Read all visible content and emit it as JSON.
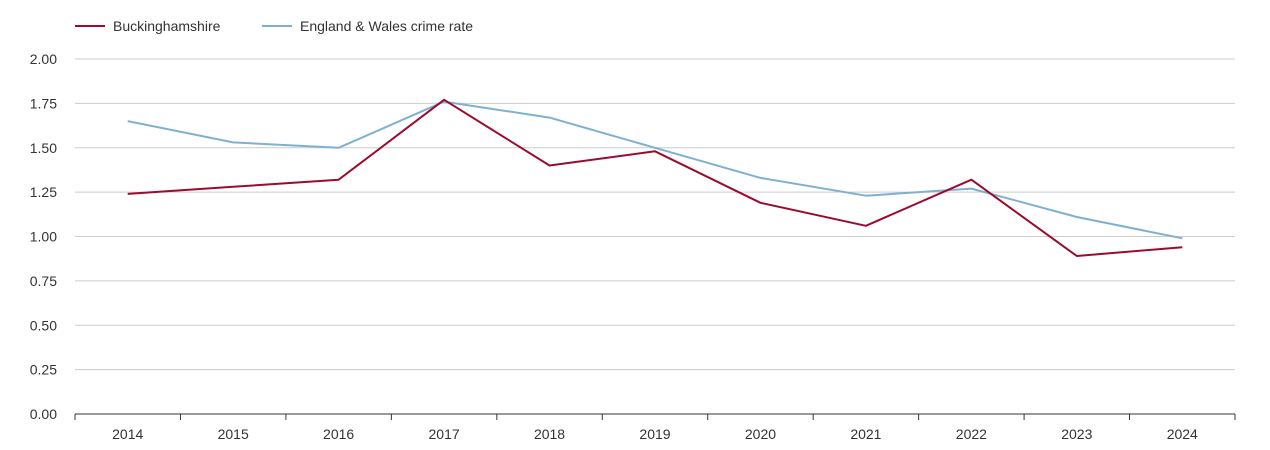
{
  "chart_data": {
    "type": "line",
    "title": "",
    "xlabel": "",
    "ylabel": "",
    "categories": [
      "2014",
      "2015",
      "2016",
      "2017",
      "2018",
      "2019",
      "2020",
      "2021",
      "2022",
      "2023",
      "2024"
    ],
    "ylim": [
      0,
      2
    ],
    "yticks": [
      "0.00",
      "0.25",
      "0.50",
      "0.75",
      "1.00",
      "1.25",
      "1.50",
      "1.75",
      "2.00"
    ],
    "grid": true,
    "legend_position": "top-left",
    "series": [
      {
        "name": "Buckinghamshire",
        "color": "#9b0b2e",
        "values": [
          1.24,
          1.28,
          1.32,
          1.77,
          1.4,
          1.48,
          1.19,
          1.06,
          1.32,
          0.89,
          0.94
        ]
      },
      {
        "name": "England & Wales crime rate",
        "color": "#7eb1d1",
        "values": [
          1.65,
          1.53,
          1.5,
          1.76,
          1.67,
          1.5,
          1.33,
          1.23,
          1.27,
          1.11,
          0.99
        ]
      }
    ]
  }
}
